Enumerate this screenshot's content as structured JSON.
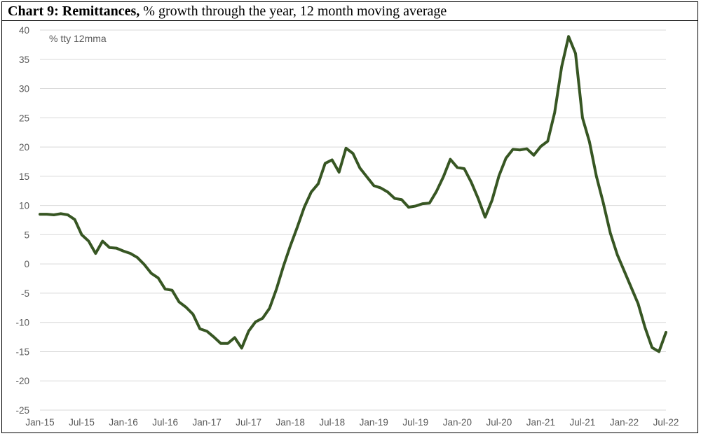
{
  "title": {
    "bold": "Chart 9: Remittances,",
    "rest": " % growth through the year, 12 month moving average"
  },
  "chart_data": {
    "type": "line",
    "unit_label": "% tty 12mma",
    "ylim": [
      -25,
      40
    ],
    "y_ticks": [
      40,
      35,
      30,
      25,
      20,
      15,
      10,
      5,
      0,
      -5,
      -10,
      -15,
      -20,
      -25
    ],
    "x_tick_labels": [
      "Jan-15",
      "Jul-15",
      "Jan-16",
      "Jul-16",
      "Jan-17",
      "Jul-17",
      "Jan-18",
      "Jul-18",
      "Jan-19",
      "Jul-19",
      "Jan-20",
      "Jul-20",
      "Jan-21",
      "Jul-21",
      "Jan-22",
      "Jul-22"
    ],
    "x_range": [
      "Jan-15",
      "Jul-22"
    ],
    "grid": true,
    "legend": "none",
    "line_color": "#375623",
    "series": [
      {
        "start": "Jan-15",
        "frequency": "monthly",
        "values": [
          8.5,
          8.5,
          8.4,
          8.6,
          8.4,
          7.6,
          5.0,
          3.9,
          1.8,
          3.9,
          2.8,
          2.7,
          2.2,
          1.8,
          1.1,
          -0.1,
          -1.6,
          -2.4,
          -4.3,
          -4.5,
          -6.5,
          -7.4,
          -8.6,
          -11.1,
          -11.5,
          -12.5,
          -13.6,
          -13.6,
          -12.6,
          -14.4,
          -11.5,
          -9.9,
          -9.3,
          -7.6,
          -4.3,
          -0.4,
          3.1,
          6.3,
          9.7,
          12.3,
          13.7,
          17.2,
          17.8,
          15.7,
          19.8,
          18.9,
          16.4,
          14.9,
          13.4,
          13.0,
          12.3,
          11.2,
          11.0,
          9.7,
          9.9,
          10.3,
          10.4,
          12.4,
          14.9,
          17.9,
          16.5,
          16.3,
          14.0,
          11.2,
          8.0,
          10.9,
          15.1,
          18.1,
          19.6,
          19.5,
          19.7,
          18.6,
          20.1,
          21.0,
          25.9,
          33.7,
          38.9,
          36.0,
          25.0,
          20.9,
          15.0,
          10.4,
          5.3,
          1.6,
          -1.2,
          -4.0,
          -6.8,
          -10.9,
          -14.3,
          -15.0,
          -11.7
        ]
      }
    ]
  }
}
